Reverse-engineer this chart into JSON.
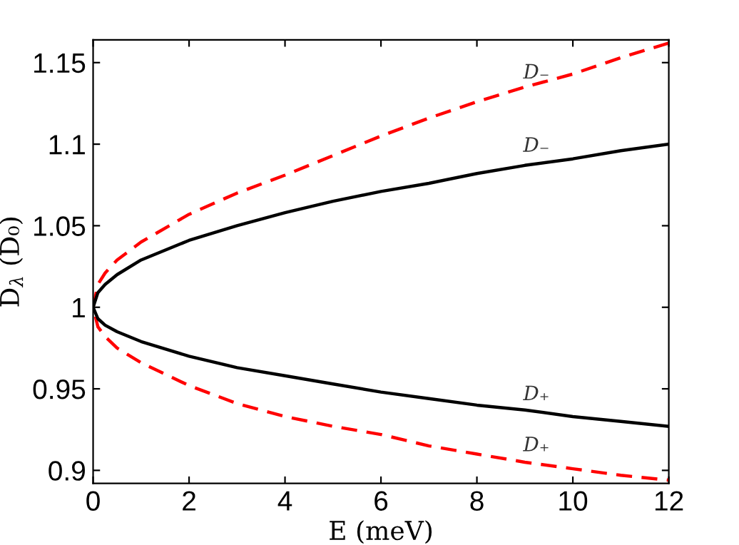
{
  "chart_data": {
    "type": "line",
    "xlabel": "E (meV)",
    "ylabel": "D$_{λ}$ (D₀)",
    "series": [
      {
        "color": "#ff0000",
        "line_style": "dashed",
        "x": [
          12,
          11,
          10,
          9,
          8,
          7,
          6,
          5,
          4,
          3,
          2,
          1,
          0.5,
          0.25,
          0.1,
          0,
          0.1,
          0.25,
          0.5,
          1,
          2,
          3,
          4,
          5,
          6,
          7,
          8,
          9,
          10,
          11,
          12
        ],
        "values": [
          1.162,
          1.153,
          1.143,
          1.135,
          1.126,
          1.116,
          1.105,
          1.093,
          1.081,
          1.07,
          1.057,
          1.04,
          1.029,
          1.021,
          1.014,
          1,
          0.988,
          0.982,
          0.975,
          0.966,
          0.952,
          0.941,
          0.933,
          0.927,
          0.922,
          0.915,
          0.91,
          0.905,
          0.901,
          0.897,
          0.894
        ]
      },
      {
        "color": "#000000",
        "line_style": "solid",
        "x": [
          12,
          11,
          10,
          9,
          8,
          7,
          6,
          5,
          4,
          3,
          2,
          1,
          0.5,
          0.25,
          0.1,
          0,
          0.1,
          0.25,
          0.5,
          1,
          2,
          3,
          4,
          5,
          6,
          7,
          8,
          9,
          10,
          11,
          12
        ],
        "values": [
          1.1,
          1.096,
          1.091,
          1.087,
          1.082,
          1.076,
          1.071,
          1.065,
          1.058,
          1.05,
          1.041,
          1.029,
          1.02,
          1.014,
          1.009,
          1,
          0.993,
          0.989,
          0.985,
          0.979,
          0.97,
          0.963,
          0.958,
          0.953,
          0.948,
          0.944,
          0.94,
          0.937,
          0.933,
          0.93,
          0.927
        ]
      }
    ],
    "annotations": [
      "D₋",
      "D₋",
      "D₊",
      "D₊"
    ],
    "xlim": [
      0,
      12
    ],
    "xticks": [
      0,
      2,
      4,
      6,
      8,
      10,
      12
    ],
    "ylim": [
      0.892,
      1.164
    ],
    "yticks": [
      0.9,
      0.95,
      1,
      1.05,
      1.1,
      1.15
    ],
    "grid": false,
    "legend": false
  }
}
